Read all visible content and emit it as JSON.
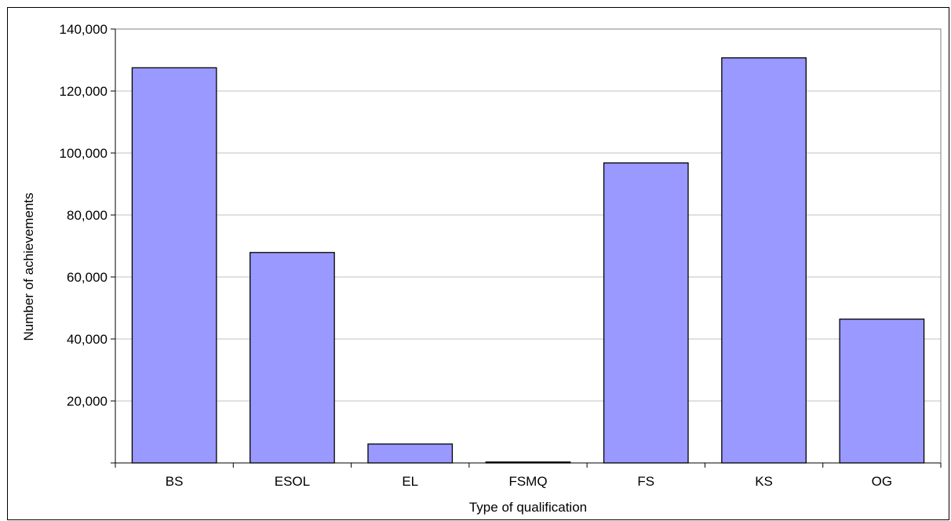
{
  "chart_data": {
    "type": "bar",
    "title": "",
    "xlabel": "Type of qualification",
    "ylabel": "Number of achievements",
    "categories": [
      "BS",
      "ESOL",
      "EL",
      "FSMQ",
      "FS",
      "KS",
      "OG"
    ],
    "values": [
      127500,
      67900,
      6100,
      300,
      96800,
      130700,
      46400
    ],
    "ylim": [
      0,
      140000
    ],
    "yticks": [
      20000,
      40000,
      60000,
      80000,
      100000,
      120000,
      140000
    ],
    "ytick_labels": [
      "20,000",
      "40,000",
      "60,000",
      "80,000",
      "100,000",
      "120,000",
      "140,000"
    ],
    "grid": true,
    "legend": "none",
    "colors": {
      "bar_fill": "#9999ff",
      "bar_stroke": "#000000",
      "grid": "#c0c0c0",
      "axis": "#808080"
    }
  }
}
